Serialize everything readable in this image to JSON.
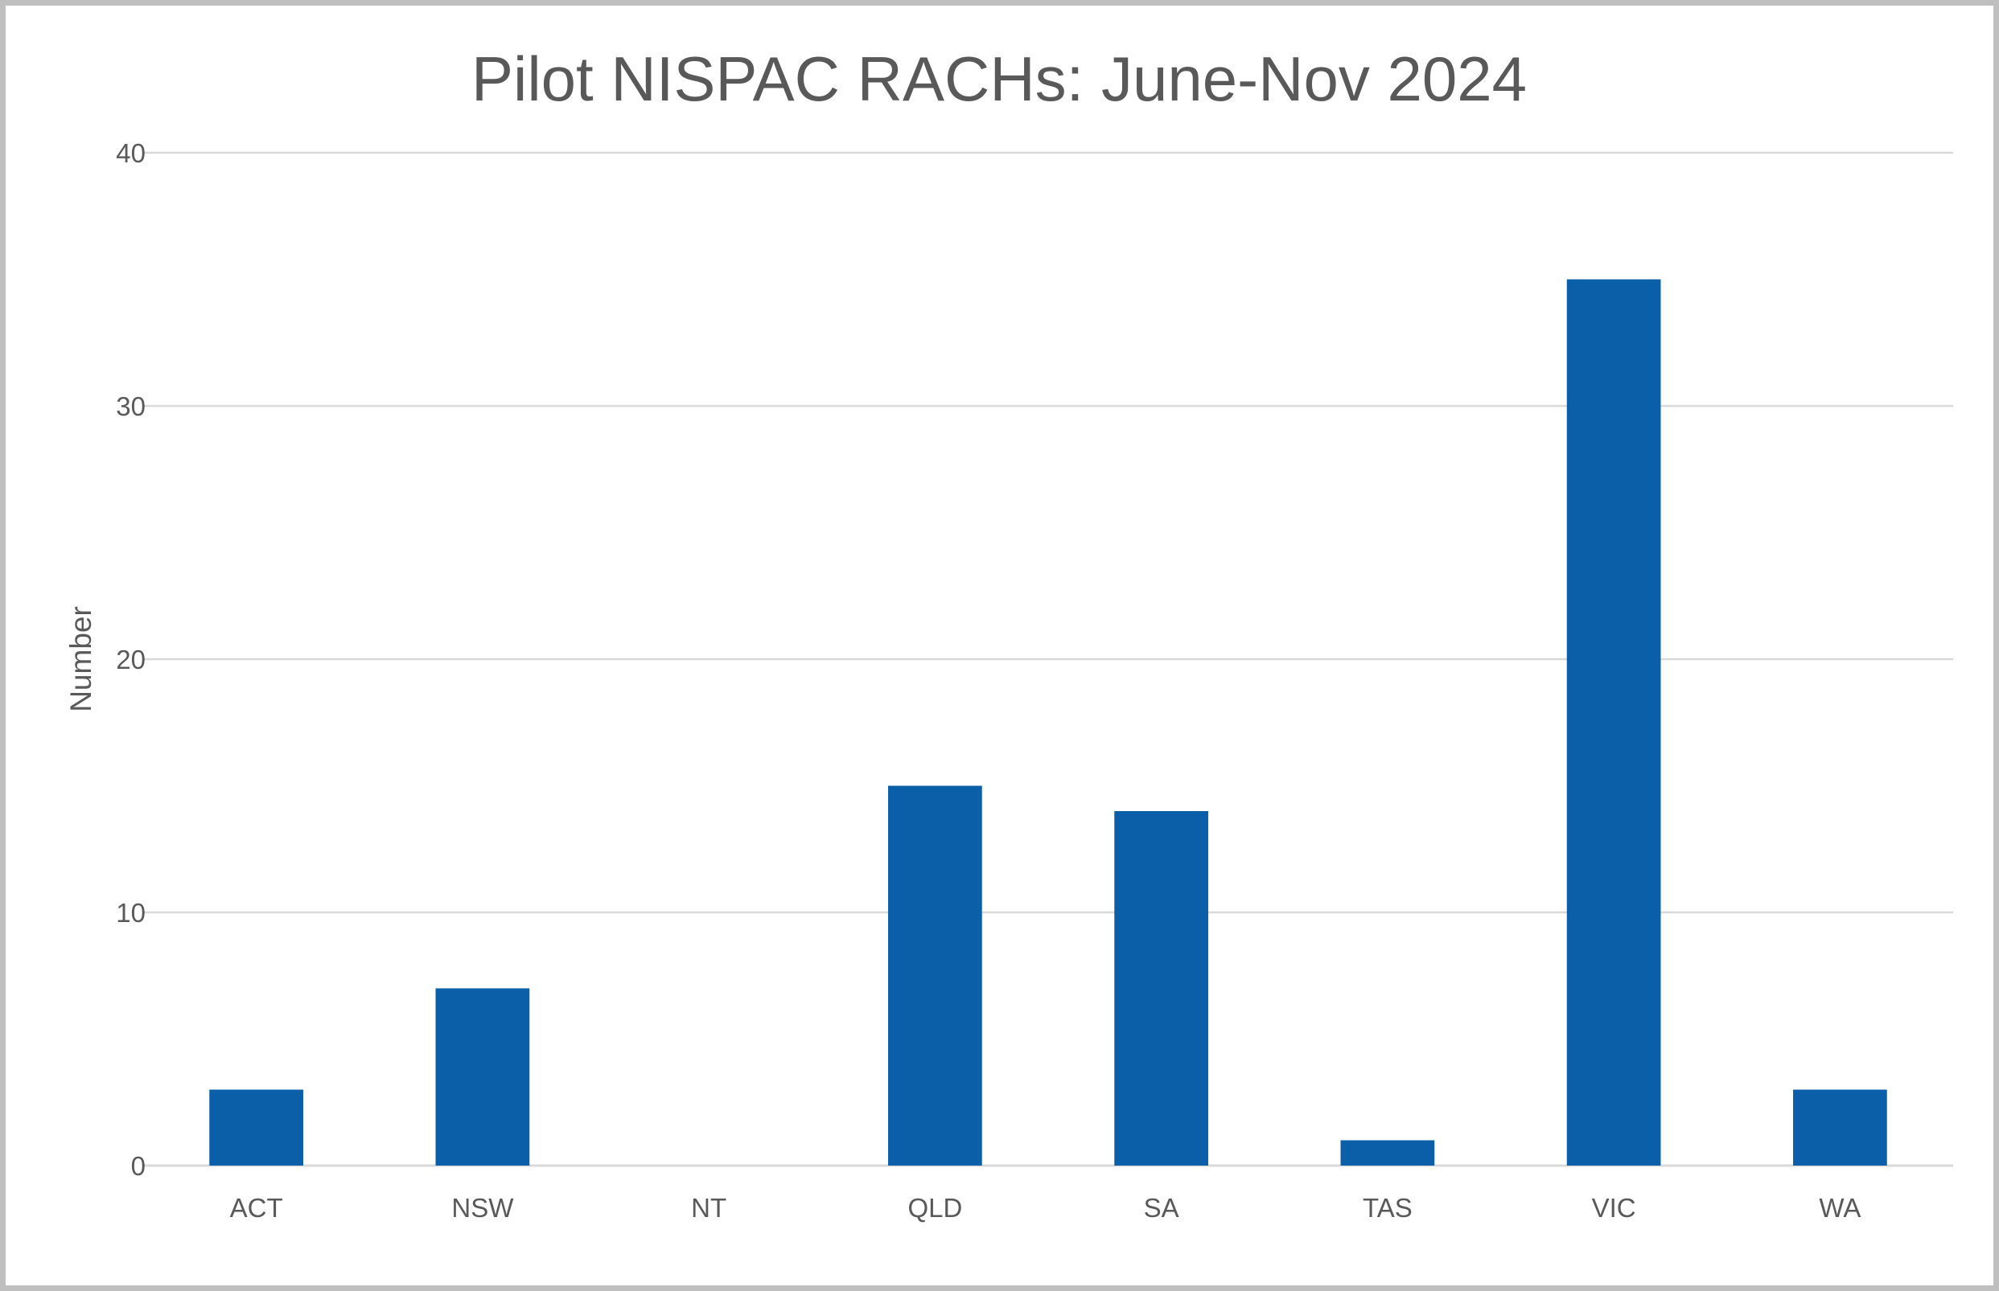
{
  "chart_data": {
    "type": "bar",
    "title": "Pilot NISPAC RACHs: June-Nov 2024",
    "xlabel": "",
    "ylabel": "Number",
    "categories": [
      "ACT",
      "NSW",
      "NT",
      "QLD",
      "SA",
      "TAS",
      "VIC",
      "WA"
    ],
    "values": [
      3,
      7,
      0,
      15,
      14,
      1,
      35,
      3
    ],
    "ylim": [
      0,
      40
    ],
    "yticks": [
      0,
      10,
      20,
      30,
      40
    ],
    "grid": true,
    "legend": "none",
    "bar_color": "#0b5fa9",
    "grid_color": "#d9d9d9",
    "text_color": "#595959",
    "border_color": "#bfbfbf"
  }
}
